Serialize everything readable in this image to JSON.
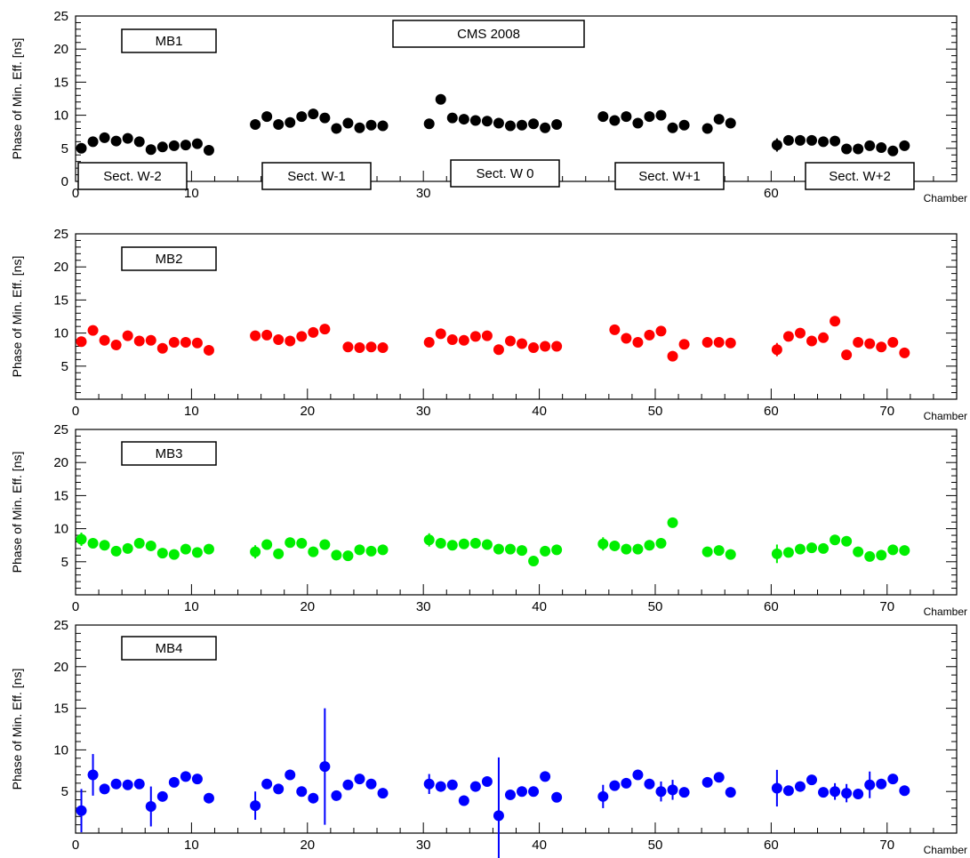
{
  "chart_data": [
    {
      "type": "scatter",
      "title": "CMS 2008",
      "panel_label": "MB1",
      "ylabel": "Phase of Min. Eff. [ns]",
      "xlabel": "Chamber",
      "xlim": [
        0,
        76
      ],
      "ylim": [
        0,
        25
      ],
      "xticks": [
        0,
        10,
        30,
        60
      ],
      "yticks": [
        0,
        5,
        10,
        15,
        20,
        25
      ],
      "grid": false,
      "sector_labels": [
        "Sect.  W-2",
        "Sect.  W-1",
        "Sect.  W 0",
        "Sect.  W+1",
        "Sect.  W+2"
      ],
      "color": "#000000",
      "series": [
        {
          "x": [
            0.5,
            1.5,
            2.5,
            3.5,
            4.5,
            5.5,
            6.5,
            7.5,
            8.5,
            9.5,
            10.5,
            11.5,
            15.5,
            16.5,
            17.5,
            18.5,
            19.5,
            20.5,
            21.5,
            22.5,
            23.5,
            24.5,
            25.5,
            26.5,
            30.5,
            31.5,
            32.5,
            33.5,
            34.5,
            35.5,
            36.5,
            37.5,
            38.5,
            39.5,
            40.5,
            41.5,
            45.5,
            46.5,
            47.5,
            48.5,
            49.5,
            50.5,
            51.5,
            52.5,
            54.5,
            55.5,
            56.5,
            60.5,
            61.5,
            62.5,
            63.5,
            64.5,
            65.5,
            66.5,
            67.5,
            68.5,
            69.5,
            70.5,
            71.5
          ],
          "y": [
            5.0,
            6.0,
            6.6,
            6.1,
            6.5,
            6.0,
            4.8,
            5.2,
            5.4,
            5.5,
            5.7,
            4.7,
            8.6,
            9.8,
            8.6,
            8.9,
            9.8,
            10.2,
            9.6,
            8.0,
            8.8,
            8.1,
            8.5,
            8.4,
            8.7,
            12.4,
            9.6,
            9.4,
            9.2,
            9.1,
            8.8,
            8.4,
            8.5,
            8.7,
            8.1,
            8.6,
            9.8,
            9.2,
            9.8,
            8.8,
            9.8,
            10.0,
            8.1,
            8.5,
            8.0,
            9.4,
            8.8,
            5.5,
            6.2,
            6.2,
            6.2,
            6.0,
            6.1,
            4.9,
            4.9,
            5.4,
            5.1,
            4.6,
            5.4
          ],
          "err": [
            0.6,
            0,
            0,
            0,
            0,
            0,
            0,
            0,
            0,
            0,
            0,
            0,
            0,
            0,
            0,
            0,
            0,
            0,
            0,
            0,
            0,
            0,
            0,
            0,
            0,
            0,
            0,
            0,
            0,
            0,
            0,
            0,
            0,
            0,
            0,
            0,
            0,
            0,
            0,
            0,
            0,
            0,
            0,
            0,
            0,
            0,
            0,
            1.0,
            0,
            0,
            0,
            0,
            0,
            0,
            0,
            0,
            0,
            0,
            0
          ]
        }
      ]
    },
    {
      "type": "scatter",
      "panel_label": "MB2",
      "ylabel": "Phase of Min. Eff. [ns]",
      "xlabel": "Chamber",
      "xlim": [
        0,
        76
      ],
      "ylim": [
        0,
        25
      ],
      "xticks": [
        0,
        10,
        20,
        30,
        40,
        50,
        60,
        70
      ],
      "yticks": [
        5,
        10,
        15,
        20,
        25
      ],
      "grid": false,
      "color": "#ff0000",
      "series": [
        {
          "x": [
            0.5,
            1.5,
            2.5,
            3.5,
            4.5,
            5.5,
            6.5,
            7.5,
            8.5,
            9.5,
            10.5,
            11.5,
            15.5,
            16.5,
            17.5,
            18.5,
            19.5,
            20.5,
            21.5,
            23.5,
            24.5,
            25.5,
            26.5,
            30.5,
            31.5,
            32.5,
            33.5,
            34.5,
            35.5,
            36.5,
            37.5,
            38.5,
            39.5,
            40.5,
            41.5,
            46.5,
            47.5,
            48.5,
            49.5,
            50.5,
            51.5,
            52.5,
            54.5,
            55.5,
            56.5,
            60.5,
            61.5,
            62.5,
            63.5,
            64.5,
            65.5,
            66.5,
            67.5,
            68.5,
            69.5,
            70.5,
            71.5
          ],
          "y": [
            8.7,
            10.4,
            8.9,
            8.2,
            9.6,
            8.8,
            8.9,
            7.7,
            8.6,
            8.6,
            8.5,
            7.4,
            9.6,
            9.7,
            9.0,
            8.8,
            9.5,
            10.1,
            10.6,
            7.9,
            7.8,
            7.9,
            7.8,
            8.6,
            9.9,
            9.0,
            8.9,
            9.5,
            9.6,
            7.5,
            8.8,
            8.4,
            7.8,
            8.0,
            8.0,
            10.5,
            9.2,
            8.6,
            9.7,
            10.3,
            6.5,
            8.3,
            8.6,
            8.6,
            8.5,
            7.5,
            9.5,
            10.0,
            8.8,
            9.3,
            11.8,
            6.7,
            8.6,
            8.4,
            7.9,
            8.6,
            7.0
          ],
          "err": [
            0,
            0,
            0,
            0,
            0,
            0,
            0,
            0,
            0,
            0,
            0,
            0,
            0,
            0,
            0,
            0,
            0,
            0,
            0,
            0,
            0,
            0,
            0,
            0,
            0,
            0,
            0,
            0,
            0,
            0,
            0,
            0,
            0,
            0,
            0,
            0,
            0,
            0,
            0,
            0,
            0,
            0,
            0,
            0,
            0,
            1.0,
            0,
            0,
            0,
            0,
            0,
            0,
            0,
            0,
            0,
            0,
            0
          ]
        }
      ]
    },
    {
      "type": "scatter",
      "panel_label": "MB3",
      "ylabel": "Phase of Min. Eff. [ns]",
      "xlabel": "Chamber",
      "xlim": [
        0,
        76
      ],
      "ylim": [
        0,
        25
      ],
      "xticks": [
        0,
        10,
        20,
        30,
        40,
        50,
        60,
        70
      ],
      "yticks": [
        5,
        10,
        15,
        20,
        25
      ],
      "grid": false,
      "color": "#00ee00",
      "series": [
        {
          "x": [
            0.5,
            1.5,
            2.5,
            3.5,
            4.5,
            5.5,
            6.5,
            7.5,
            8.5,
            9.5,
            10.5,
            11.5,
            15.5,
            16.5,
            17.5,
            18.5,
            19.5,
            20.5,
            21.5,
            22.5,
            23.5,
            24.5,
            25.5,
            26.5,
            30.5,
            31.5,
            32.5,
            33.5,
            34.5,
            35.5,
            36.5,
            37.5,
            38.5,
            39.5,
            40.5,
            41.5,
            45.5,
            46.5,
            47.5,
            48.5,
            49.5,
            50.5,
            51.5,
            54.5,
            55.5,
            56.5,
            60.5,
            61.5,
            62.5,
            63.5,
            64.5,
            65.5,
            66.5,
            67.5,
            68.5,
            69.5,
            70.5,
            71.5
          ],
          "y": [
            8.4,
            7.8,
            7.5,
            6.6,
            7.0,
            7.8,
            7.4,
            6.3,
            6.1,
            6.9,
            6.4,
            6.9,
            6.5,
            7.6,
            6.2,
            7.9,
            7.8,
            6.5,
            7.6,
            6.0,
            5.9,
            6.8,
            6.6,
            6.8,
            8.3,
            7.8,
            7.5,
            7.7,
            7.8,
            7.6,
            6.9,
            6.9,
            6.7,
            5.1,
            6.6,
            6.8,
            7.7,
            7.4,
            6.9,
            6.9,
            7.5,
            7.8,
            10.9,
            6.5,
            6.7,
            6.1,
            6.2,
            6.4,
            6.9,
            7.1,
            7.0,
            8.3,
            8.1,
            6.5,
            5.8,
            6.0,
            6.8,
            6.7
          ],
          "err": [
            1.0,
            0,
            0,
            0,
            0,
            0,
            0,
            0,
            0,
            0,
            0,
            0,
            1.0,
            0,
            0,
            0,
            0,
            0,
            0,
            0,
            0,
            0,
            0,
            0,
            1.0,
            0,
            0,
            0,
            0,
            0,
            0,
            0,
            0,
            0,
            0,
            0,
            1.0,
            0,
            0,
            0,
            0,
            0,
            0,
            0,
            0,
            0,
            1.4,
            0,
            0,
            0,
            0,
            0,
            0,
            0,
            0,
            0,
            0,
            0
          ]
        }
      ]
    },
    {
      "type": "scatter",
      "panel_label": "MB4",
      "ylabel": "Phase of Min. Eff. [ns]",
      "xlabel": "Chamber",
      "xlim": [
        0,
        76
      ],
      "ylim": [
        0,
        25
      ],
      "xticks": [
        0,
        10,
        20,
        30,
        40,
        50,
        60,
        70
      ],
      "yticks": [
        5,
        10,
        15,
        20,
        25
      ],
      "grid": false,
      "color": "#0000ff",
      "series": [
        {
          "x": [
            0.5,
            1.5,
            2.5,
            3.5,
            4.5,
            5.5,
            6.5,
            7.5,
            8.5,
            9.5,
            10.5,
            11.5,
            15.5,
            16.5,
            17.5,
            18.5,
            19.5,
            20.5,
            21.5,
            22.5,
            23.5,
            24.5,
            25.5,
            26.5,
            30.5,
            31.5,
            32.5,
            33.5,
            34.5,
            35.5,
            36.5,
            37.5,
            38.5,
            39.5,
            40.5,
            41.5,
            45.5,
            46.5,
            47.5,
            48.5,
            49.5,
            50.5,
            51.5,
            52.5,
            54.5,
            55.5,
            56.5,
            60.5,
            61.5,
            62.5,
            63.5,
            64.5,
            65.5,
            66.5,
            67.5,
            68.5,
            69.5,
            70.5,
            71.5
          ],
          "y": [
            2.7,
            7.0,
            5.3,
            5.9,
            5.8,
            5.9,
            3.2,
            4.4,
            6.1,
            6.8,
            6.5,
            4.2,
            3.3,
            5.9,
            5.3,
            7.0,
            5.0,
            4.2,
            8.0,
            4.5,
            5.8,
            6.5,
            5.9,
            4.8,
            5.9,
            5.6,
            5.8,
            3.9,
            5.6,
            6.2,
            2.1,
            4.6,
            5.0,
            5.0,
            6.8,
            4.3,
            4.4,
            5.7,
            6.0,
            7.0,
            5.9,
            5.0,
            5.2,
            4.9,
            6.1,
            6.7,
            4.9,
            5.4,
            5.1,
            5.6,
            6.4,
            4.9,
            5.0,
            4.8,
            4.7,
            5.8,
            5.9,
            6.5,
            5.1
          ],
          "err": [
            2.6,
            2.5,
            0,
            0,
            0,
            0,
            2.4,
            0,
            0,
            0,
            0,
            0,
            1.7,
            0,
            0,
            0,
            0,
            0,
            7.0,
            0,
            0,
            0,
            0,
            0,
            1.2,
            0,
            0,
            0,
            0,
            0,
            7.0,
            0,
            0,
            0,
            0,
            0,
            1.4,
            0,
            0,
            0,
            0,
            1.2,
            1.2,
            0,
            0,
            0,
            0,
            2.2,
            0,
            0,
            0,
            0,
            1.0,
            1.1,
            0,
            1.6,
            0,
            0,
            0
          ]
        }
      ]
    }
  ]
}
